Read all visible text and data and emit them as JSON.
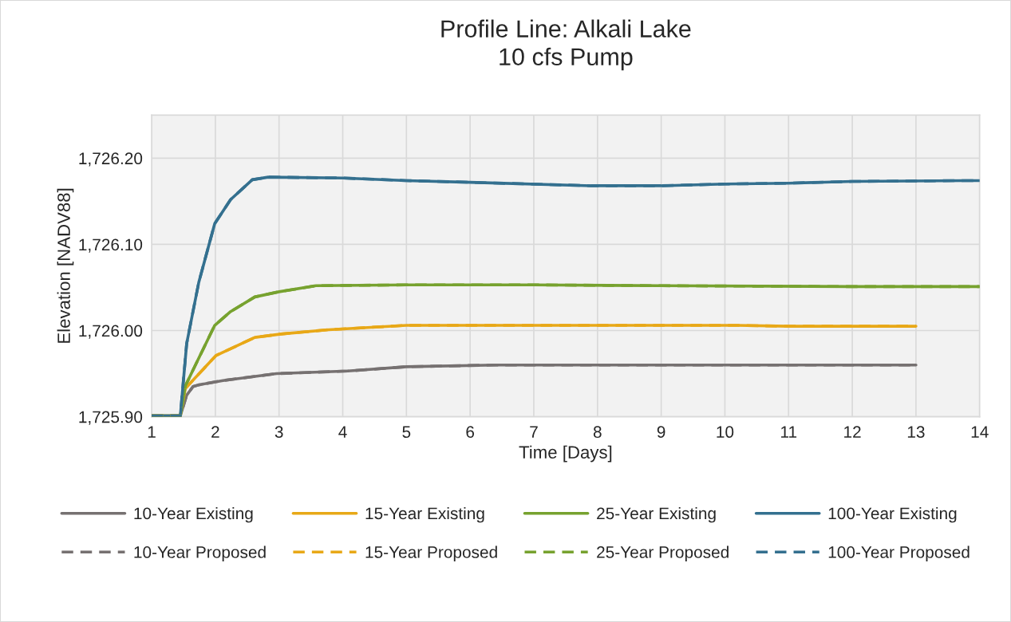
{
  "chart_data": {
    "type": "line",
    "title": "Profile Line: Alkali Lake\n10 cfs Pump",
    "xlabel": "Time [Days]",
    "ylabel": "Elevation [NADV88]",
    "xlim": [
      1,
      14
    ],
    "xticks": [
      1,
      2,
      3,
      4,
      5,
      6,
      7,
      8,
      9,
      10,
      11,
      12,
      13,
      14
    ],
    "ylim": [
      1725.9,
      1726.25
    ],
    "yticks": [
      {
        "value": 1725.9,
        "label": "1,725.90"
      },
      {
        "value": 1726.0,
        "label": "1,726.00"
      },
      {
        "value": 1726.1,
        "label": "1,726.10"
      },
      {
        "value": 1726.2,
        "label": "1,726.20"
      }
    ],
    "grid": true,
    "legend": "bottom",
    "marker": "none",
    "series": [
      {
        "name": "10-Year Existing",
        "color": "#767171",
        "line_style": "solid",
        "x": [
          1,
          1.45,
          1.55,
          1.65,
          1.74,
          2.12,
          2.96,
          4.08,
          5,
          6.4,
          8,
          10,
          13
        ],
        "values": [
          1725.901,
          1725.901,
          1725.925,
          1725.935,
          1725.937,
          1725.942,
          1725.95,
          1725.953,
          1725.958,
          1725.96,
          1725.96,
          1725.96,
          1725.96
        ]
      },
      {
        "name": "15-Year Existing",
        "color": "#e8a817",
        "line_style": "solid",
        "x": [
          1,
          1.45,
          1.53,
          2.01,
          2.62,
          3.03,
          3.78,
          5,
          7,
          10.2,
          11,
          13
        ],
        "values": [
          1725.901,
          1725.901,
          1725.933,
          1725.971,
          1725.992,
          1725.996,
          1726.001,
          1726.006,
          1726.006,
          1726.006,
          1726.005,
          1726.005
        ]
      },
      {
        "name": "25-Year Existing",
        "color": "#77a22f",
        "line_style": "solid",
        "x": [
          1,
          1.45,
          1.53,
          1.99,
          2.24,
          2.62,
          3.0,
          3.58,
          5,
          7,
          9,
          12,
          14
        ],
        "values": [
          1725.901,
          1725.901,
          1725.936,
          1726.006,
          1726.022,
          1726.039,
          1726.045,
          1726.052,
          1726.053,
          1726.053,
          1726.052,
          1726.051,
          1726.051
        ]
      },
      {
        "name": "100-Year Existing",
        "color": "#34708f",
        "line_style": "solid",
        "x": [
          1,
          1.45,
          1.55,
          1.74,
          1.99,
          2.24,
          2.58,
          2.83,
          4,
          5,
          6,
          7.9,
          9,
          10,
          11,
          12,
          13.77,
          14
        ],
        "values": [
          1725.901,
          1725.901,
          1725.985,
          1726.056,
          1726.124,
          1726.152,
          1726.175,
          1726.178,
          1726.177,
          1726.174,
          1726.172,
          1726.168,
          1726.168,
          1726.17,
          1726.171,
          1726.173,
          1726.174,
          1726.174
        ]
      },
      {
        "name": "10-Year Proposed",
        "color": "#767171",
        "line_style": "dashed",
        "x": [
          1,
          1.45,
          1.55,
          1.65,
          1.74,
          2.12,
          2.96,
          4.08,
          5,
          6.4,
          8,
          10,
          13
        ],
        "values": [
          1725.901,
          1725.901,
          1725.925,
          1725.935,
          1725.937,
          1725.942,
          1725.95,
          1725.953,
          1725.958,
          1725.96,
          1725.96,
          1725.96,
          1725.96
        ]
      },
      {
        "name": "15-Year Proposed",
        "color": "#e8a817",
        "line_style": "dashed",
        "x": [
          1,
          1.45,
          1.53,
          2.01,
          2.62,
          3.03,
          3.78,
          5,
          7,
          10.2,
          11,
          13
        ],
        "values": [
          1725.901,
          1725.901,
          1725.933,
          1725.971,
          1725.992,
          1725.996,
          1726.001,
          1726.006,
          1726.006,
          1726.006,
          1726.005,
          1726.005
        ]
      },
      {
        "name": "25-Year Proposed",
        "color": "#77a22f",
        "line_style": "dashed",
        "x": [
          1,
          1.45,
          1.53,
          1.99,
          2.24,
          2.62,
          3.0,
          3.58,
          5,
          7,
          9,
          12,
          14
        ],
        "values": [
          1725.901,
          1725.901,
          1725.936,
          1726.006,
          1726.022,
          1726.039,
          1726.045,
          1726.052,
          1726.053,
          1726.053,
          1726.052,
          1726.051,
          1726.051
        ]
      },
      {
        "name": "100-Year Proposed",
        "color": "#34708f",
        "line_style": "dashed",
        "x": [
          1,
          1.45,
          1.55,
          1.74,
          1.99,
          2.24,
          2.58,
          2.83,
          4,
          5,
          6,
          7.9,
          9,
          10,
          11,
          12,
          13.77,
          14
        ],
        "values": [
          1725.901,
          1725.901,
          1725.985,
          1726.056,
          1726.124,
          1726.152,
          1726.175,
          1726.178,
          1726.177,
          1726.174,
          1726.172,
          1726.168,
          1726.168,
          1726.17,
          1726.171,
          1726.173,
          1726.174,
          1726.174
        ]
      }
    ]
  }
}
